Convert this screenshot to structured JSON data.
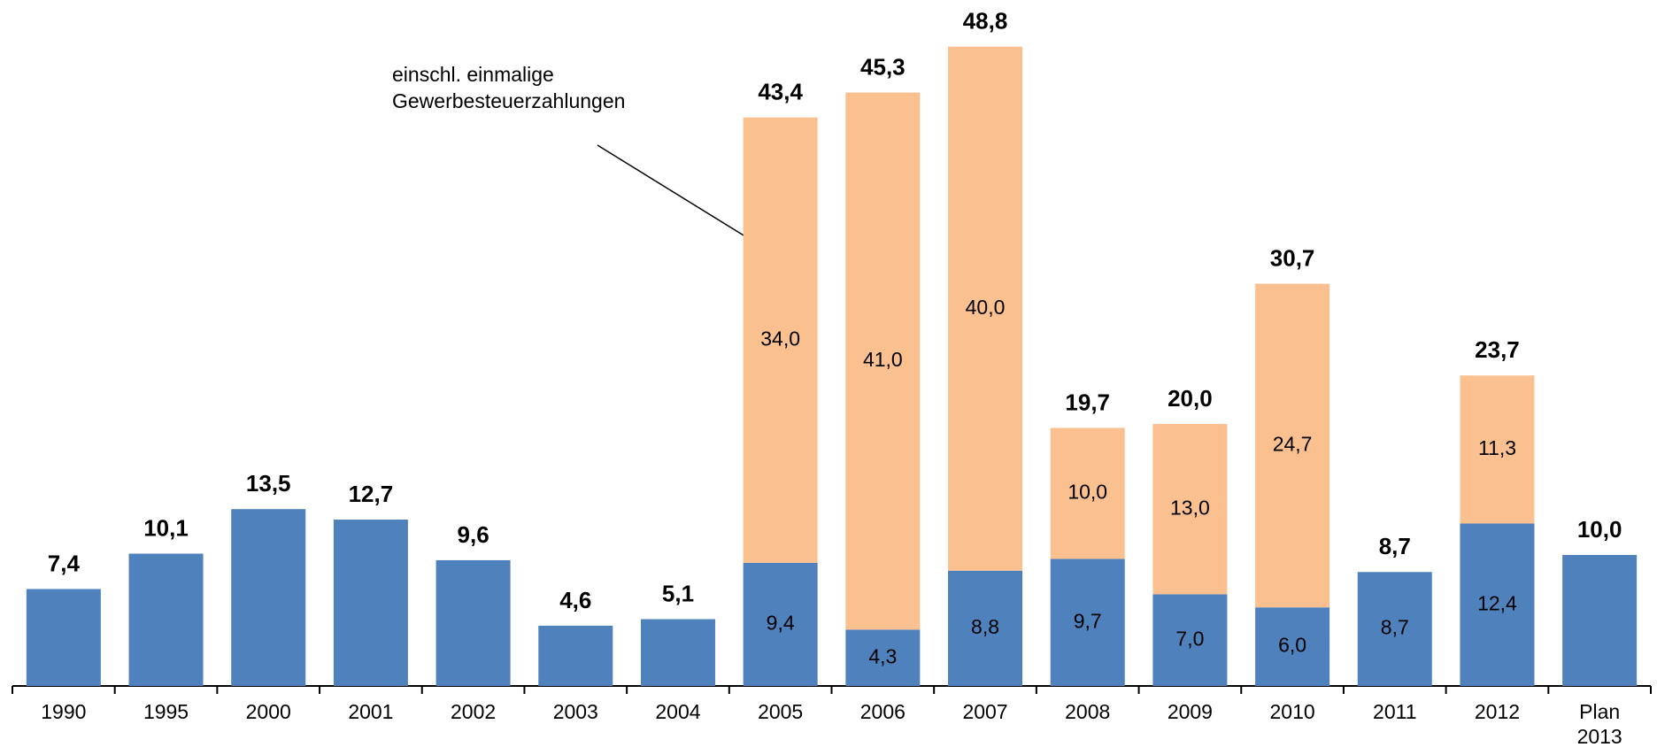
{
  "chart_data": {
    "type": "stacked_bar",
    "annotation": [
      "einschl. einmalige",
      "Gewerbesteuerzahlungen"
    ],
    "categories": [
      "1990",
      "1995",
      "2000",
      "2001",
      "2002",
      "2003",
      "2004",
      "2005",
      "2006",
      "2007",
      "2008",
      "2009",
      "2010",
      "2011",
      "2012",
      "Plan 2013"
    ],
    "series": [
      {
        "color": "#4f81bd",
        "values": [
          7.4,
          10.1,
          13.5,
          12.7,
          9.6,
          4.6,
          5.1,
          9.4,
          4.3,
          8.8,
          9.7,
          7.0,
          6.0,
          8.7,
          12.4,
          10.0
        ],
        "value_labels": [
          null,
          null,
          null,
          null,
          null,
          null,
          null,
          "9,4",
          "4,3",
          "8,8",
          "9,7",
          "7,0",
          "6,0",
          "8,7",
          "12,4",
          null
        ]
      },
      {
        "color": "#fac090",
        "values": [
          null,
          null,
          null,
          null,
          null,
          null,
          null,
          34.0,
          41.0,
          40.0,
          10.0,
          13.0,
          24.7,
          null,
          11.3,
          null
        ],
        "value_labels": [
          null,
          null,
          null,
          null,
          null,
          null,
          null,
          "34,0",
          "41,0",
          "40,0",
          "10,0",
          "13,0",
          "24,7",
          null,
          "11,3",
          null
        ]
      }
    ],
    "totals": [
      7.4,
      10.1,
      13.5,
      12.7,
      9.6,
      4.6,
      5.1,
      43.4,
      45.3,
      48.8,
      19.7,
      20.0,
      30.7,
      8.7,
      23.7,
      10.0
    ],
    "total_labels": [
      "7,4",
      "10,1",
      "13,5",
      "12,7",
      "9,6",
      "4,6",
      "5,1",
      "43,4",
      "45,3",
      "48,8",
      "19,7",
      "20,0",
      "30,7",
      "8,7",
      "23,7",
      "10,0"
    ],
    "ylim": [
      0,
      50
    ]
  }
}
